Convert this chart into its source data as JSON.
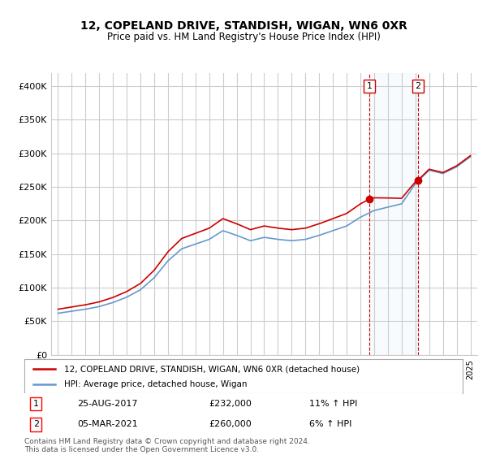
{
  "title": "12, COPELAND DRIVE, STANDISH, WIGAN, WN6 0XR",
  "subtitle": "Price paid vs. HM Land Registry's House Price Index (HPI)",
  "ylabel_ticks": [
    "£0",
    "£50K",
    "£100K",
    "£150K",
    "£200K",
    "£250K",
    "£300K",
    "£350K",
    "£400K"
  ],
  "ytick_values": [
    0,
    50000,
    100000,
    150000,
    200000,
    250000,
    300000,
    350000,
    400000
  ],
  "ylim": [
    0,
    420000
  ],
  "sale1_date": "25-AUG-2017",
  "sale1_price": 232000,
  "sale1_hpi": "11% ↑ HPI",
  "sale2_date": "05-MAR-2021",
  "sale2_price": 260000,
  "sale2_hpi": "6% ↑ HPI",
  "legend_line1": "12, COPELAND DRIVE, STANDISH, WIGAN, WN6 0XR (detached house)",
  "legend_line2": "HPI: Average price, detached house, Wigan",
  "footer": "Contains HM Land Registry data © Crown copyright and database right 2024.\nThis data is licensed under the Open Government Licence v3.0.",
  "line_color_red": "#cc0000",
  "line_color_blue": "#6699cc",
  "marker_color_red": "#cc0000",
  "vline_color": "#cc0000",
  "vline_style": "--",
  "sale1_x": 2017.65,
  "sale2_x": 2021.18,
  "background_color": "#ffffff",
  "grid_color": "#cccccc"
}
